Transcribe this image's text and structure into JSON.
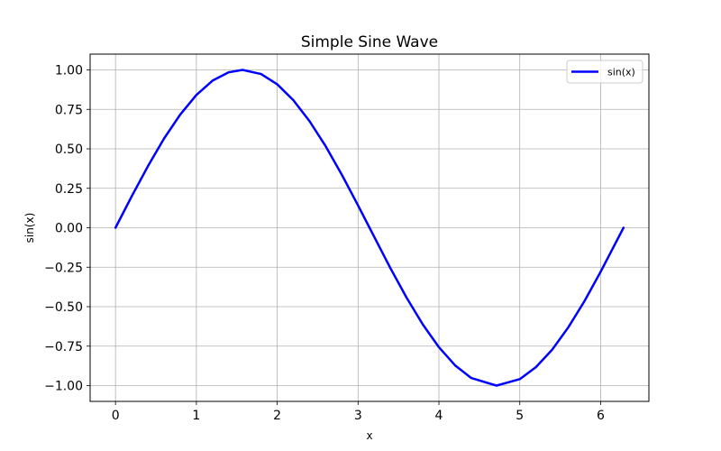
{
  "chart_data": {
    "type": "line",
    "title": "Simple Sine Wave",
    "xlabel": "x",
    "ylabel": "sin(x)",
    "xlim": [
      -0.314,
      6.597
    ],
    "ylim": [
      -1.1,
      1.1
    ],
    "xticks": [
      0,
      1,
      2,
      3,
      4,
      5,
      6
    ],
    "xtick_labels": [
      "0",
      "1",
      "2",
      "3",
      "4",
      "5",
      "6"
    ],
    "yticks": [
      -1.0,
      -0.75,
      -0.5,
      -0.25,
      0.0,
      0.25,
      0.5,
      0.75,
      1.0
    ],
    "ytick_labels": [
      "−1.00",
      "−0.75",
      "−0.50",
      "−0.25",
      "0.00",
      "0.25",
      "0.50",
      "0.75",
      "1.00"
    ],
    "grid": true,
    "legend_position": "top-right",
    "series": [
      {
        "name": "sin(x)",
        "color": "#0000ff",
        "x": [
          0.0,
          0.2,
          0.4,
          0.6,
          0.8,
          1.0,
          1.2,
          1.4,
          1.571,
          1.8,
          2.0,
          2.2,
          2.4,
          2.6,
          2.8,
          3.0,
          3.142,
          3.4,
          3.6,
          3.8,
          4.0,
          4.2,
          4.4,
          4.712,
          5.0,
          5.2,
          5.4,
          5.6,
          5.8,
          6.0,
          6.283
        ],
        "y": [
          0.0,
          0.199,
          0.389,
          0.565,
          0.717,
          0.841,
          0.932,
          0.985,
          1.0,
          0.974,
          0.909,
          0.808,
          0.675,
          0.516,
          0.335,
          0.141,
          0.0,
          -0.256,
          -0.443,
          -0.612,
          -0.757,
          -0.872,
          -0.952,
          -1.0,
          -0.959,
          -0.883,
          -0.773,
          -0.631,
          -0.465,
          -0.279,
          0.0
        ]
      }
    ]
  }
}
